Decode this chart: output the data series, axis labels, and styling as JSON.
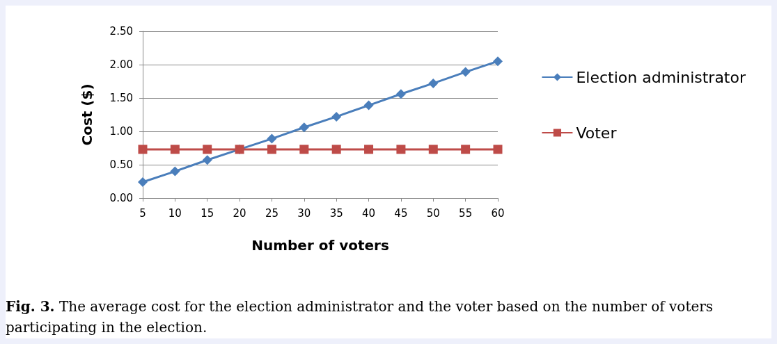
{
  "chart_data": {
    "type": "line",
    "xlabel": "Number of voters",
    "ylabel": "Cost ($)",
    "categories": [
      "5",
      "10",
      "15",
      "20",
      "25",
      "30",
      "35",
      "40",
      "45",
      "50",
      "55",
      "60"
    ],
    "series": [
      {
        "name": "Election administrator",
        "color": "#4a7ebb",
        "marker": "diamond",
        "values": [
          0.24,
          0.4,
          0.57,
          0.73,
          0.89,
          1.06,
          1.22,
          1.39,
          1.56,
          1.72,
          1.89,
          2.05
        ]
      },
      {
        "name": "Voter",
        "color": "#be4b48",
        "marker": "square",
        "values": [
          0.73,
          0.73,
          0.73,
          0.73,
          0.73,
          0.73,
          0.73,
          0.73,
          0.73,
          0.73,
          0.73,
          0.73
        ]
      }
    ],
    "ylim": [
      0,
      2.5
    ],
    "yticks": [
      {
        "value": 0,
        "label": "0.00"
      },
      {
        "value": 0.5,
        "label": "0.50"
      },
      {
        "value": 1,
        "label": "1.00"
      },
      {
        "value": 1.5,
        "label": "1.50"
      },
      {
        "value": 2,
        "label": "2.00"
      },
      {
        "value": 2.5,
        "label": "2.50"
      }
    ],
    "grid": "y",
    "legend": "right",
    "annotations": [
      "Fig. 3. The average cost for the election administrator and the voter based on the number of voters participating in the election."
    ]
  }
}
